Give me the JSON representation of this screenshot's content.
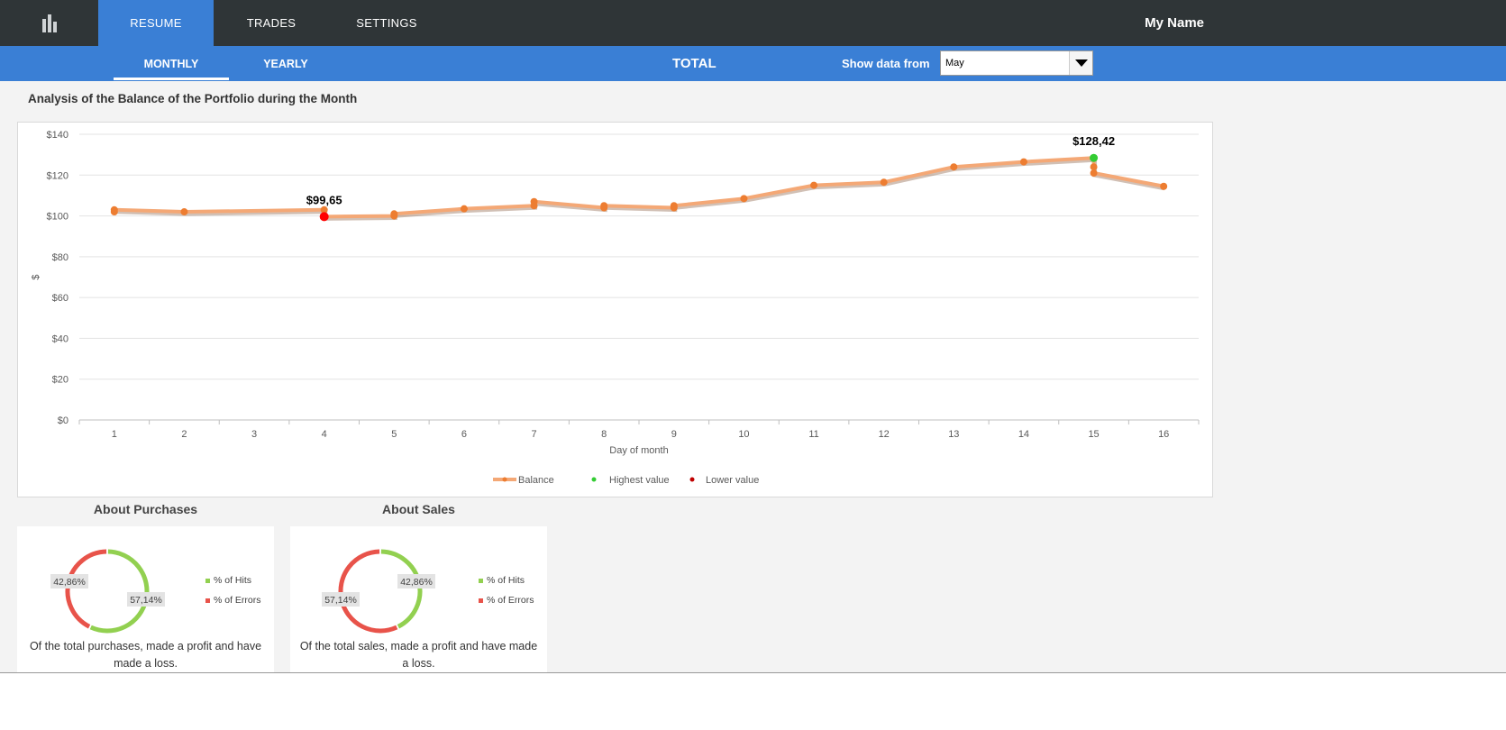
{
  "header": {
    "tabs": [
      {
        "label": "RESUME",
        "active": true
      },
      {
        "label": "TRADES",
        "active": false
      },
      {
        "label": "SETTINGS",
        "active": false
      }
    ],
    "user_name": "My Name",
    "logo_icon": "bar-chart-icon"
  },
  "subheader": {
    "tabs": [
      {
        "label": "MONTHLY",
        "active": true
      },
      {
        "label": "YEARLY",
        "active": false
      }
    ],
    "total_label": "TOTAL",
    "show_label": "Show data from",
    "month_value": "May"
  },
  "main": {
    "title": "Analysis of the Balance of the Portfolio during the Month"
  },
  "chart_data": [
    {
      "type": "line",
      "title": "",
      "xlabel": "Day of month",
      "ylabel": "$",
      "x": [
        1,
        2,
        3,
        4,
        5,
        6,
        7,
        8,
        9,
        10,
        11,
        12,
        13,
        14,
        15,
        16
      ],
      "ylim": [
        0,
        140
      ],
      "yticks": [
        "$0",
        "$20",
        "$40",
        "$60",
        "$80",
        "$100",
        "$120",
        "$140"
      ],
      "ytick_values": [
        0,
        20,
        40,
        60,
        80,
        100,
        120,
        140
      ],
      "grid": true,
      "legend_position": "bottom",
      "series": [
        {
          "name": "Balance",
          "color": "#f4a876",
          "marker_color": "#ed7d31",
          "points": [
            [
              1,
              102
            ],
            [
              1,
              103
            ],
            [
              2,
              102
            ],
            [
              4,
              103
            ],
            [
              4,
              99.65
            ],
            [
              5,
              100
            ],
            [
              5,
              101
            ],
            [
              6,
              103.5
            ],
            [
              7,
              105
            ],
            [
              7,
              107
            ],
            [
              8,
              104
            ],
            [
              8,
              105
            ],
            [
              9,
              104
            ],
            [
              9,
              105
            ],
            [
              10,
              108.5
            ],
            [
              11,
              115
            ],
            [
              12,
              116.5
            ],
            [
              13,
              124
            ],
            [
              14,
              126.5
            ],
            [
              15,
              128.42
            ],
            [
              15,
              124
            ],
            [
              15,
              121
            ],
            [
              16,
              114.5
            ]
          ]
        },
        {
          "name": "Highest value",
          "color": "#33cc33",
          "points": [
            [
              15,
              128.42
            ]
          ]
        },
        {
          "name": "Lower value",
          "color": "#c00000",
          "points": [
            [
              4,
              99.65
            ]
          ]
        }
      ],
      "annotations": [
        {
          "x": 4,
          "y": 99.65,
          "text": "$99,65"
        },
        {
          "x": 15,
          "y": 128.42,
          "text": "$128,42"
        }
      ]
    },
    {
      "type": "pie",
      "title": "About Purchases",
      "series": [
        {
          "name": "% of Hits",
          "value": 57.14,
          "label": "57,14%",
          "color": "#92d050"
        },
        {
          "name": "% of Errors",
          "value": 42.86,
          "label": "42,86%",
          "color": "#e8534a"
        }
      ],
      "caption": "Of the total  purchases,  made a profit and  have made a loss."
    },
    {
      "type": "pie",
      "title": "About Sales",
      "series": [
        {
          "name": "% of Hits",
          "value": 42.86,
          "label": "42,86%",
          "color": "#92d050"
        },
        {
          "name": "% of Errors",
          "value": 57.14,
          "label": "57,14%",
          "color": "#e8534a"
        }
      ],
      "caption": "Of the total  sales,  made a profit and  have made a loss."
    }
  ]
}
